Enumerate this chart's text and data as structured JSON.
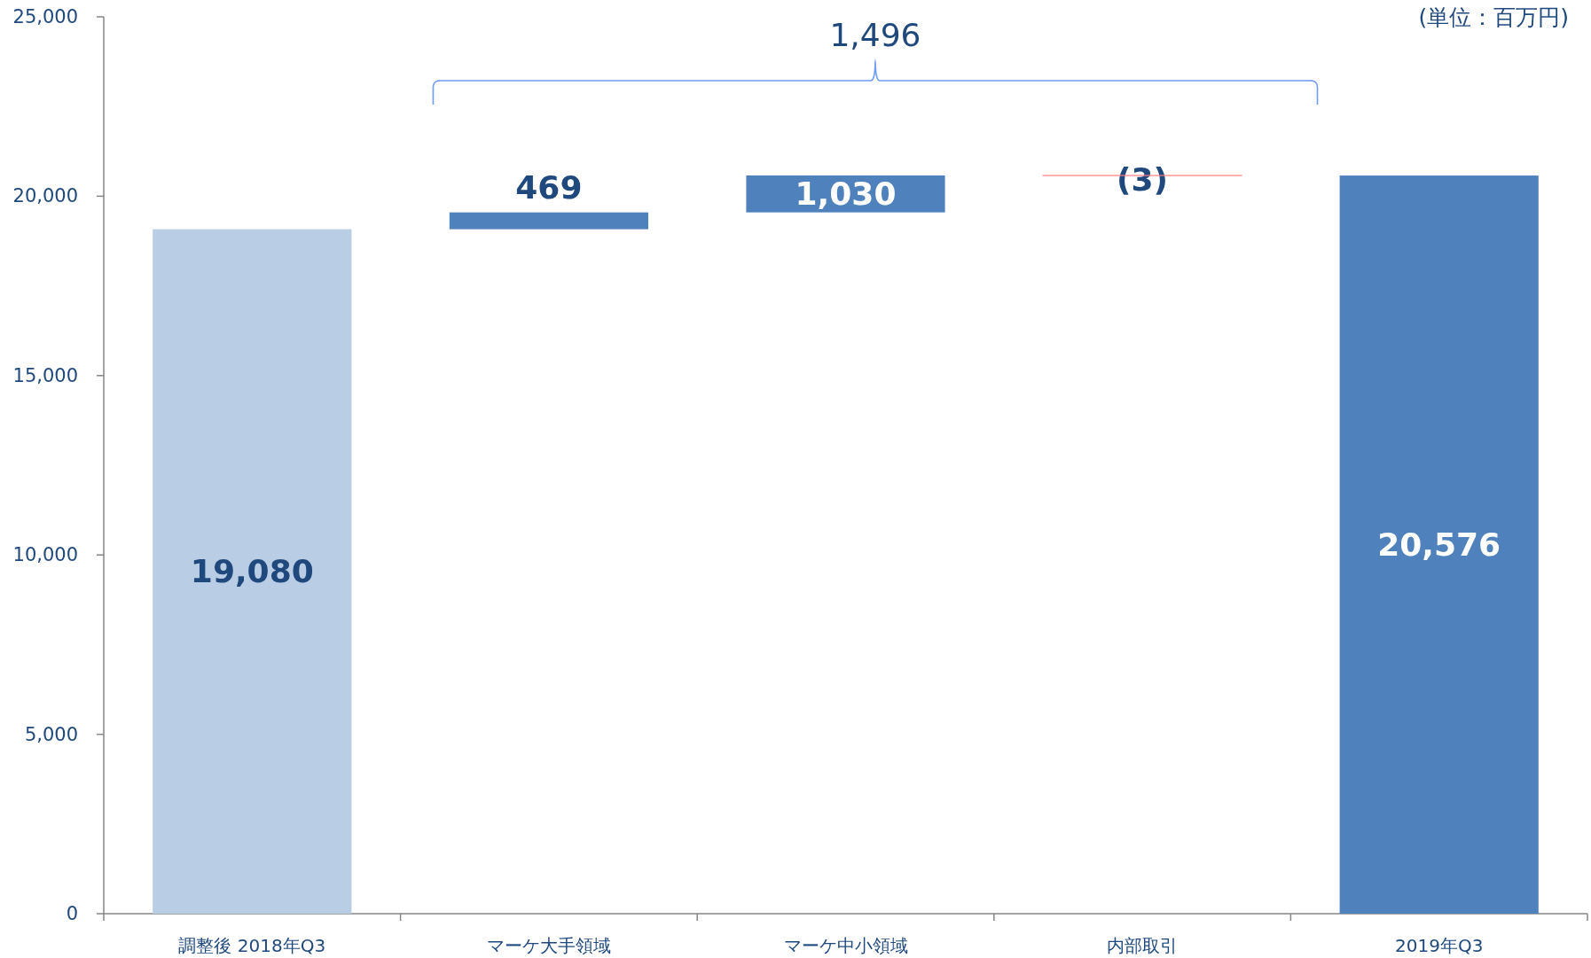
{
  "chart_data": {
    "type": "bar",
    "categories": [
      "調整後 2018年Q3",
      "マーケ大手領域",
      "マーケ中小領域",
      "内部取引",
      "2019年Q3"
    ],
    "values": [
      19080,
      469,
      1030,
      -3,
      20576
    ],
    "base": [
      0,
      19080,
      19549,
      20579,
      0
    ],
    "colors": [
      "#b9cde5",
      "#4f81bd",
      "#4f81bd",
      "#ff7c80",
      "#4f81bd"
    ],
    "value_labels": [
      "19,080",
      "469",
      "1,030",
      "(3)",
      "20,576"
    ],
    "ylim": [
      0,
      25000
    ],
    "yticks": [
      {
        "value": 0,
        "label": "0"
      },
      {
        "value": 5000,
        "label": "5,000"
      },
      {
        "value": 10000,
        "label": "10,000"
      },
      {
        "value": 15000,
        "label": "15,000"
      },
      {
        "value": 20000,
        "label": "20,000"
      },
      {
        "value": 25000,
        "label": "25,000"
      }
    ],
    "annotations": [
      "1,496",
      "(単位：百万円)"
    ]
  }
}
